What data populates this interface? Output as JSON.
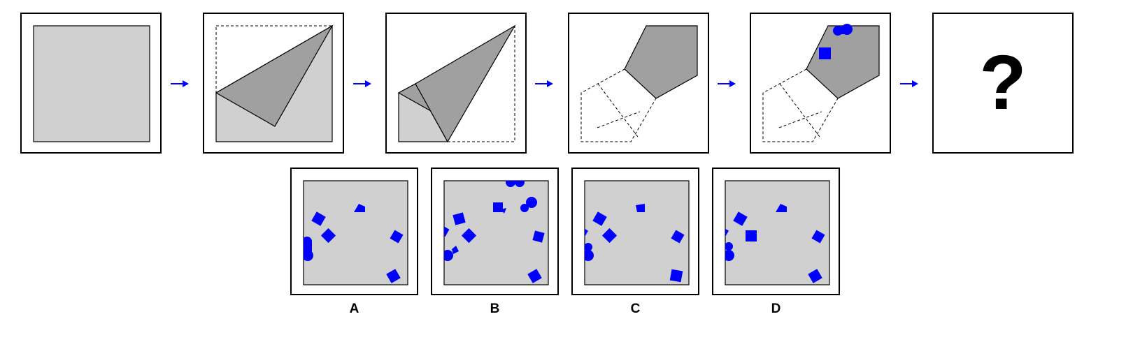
{
  "question_mark": "?",
  "options": [
    {
      "label": "A"
    },
    {
      "label": "B"
    },
    {
      "label": "C"
    },
    {
      "label": "D"
    }
  ],
  "colors": {
    "paper": "#d0d0d0",
    "folded": "#a0a0a0",
    "hole": "#0000ff",
    "arrow": "#0000ff",
    "outline": "#000000"
  }
}
